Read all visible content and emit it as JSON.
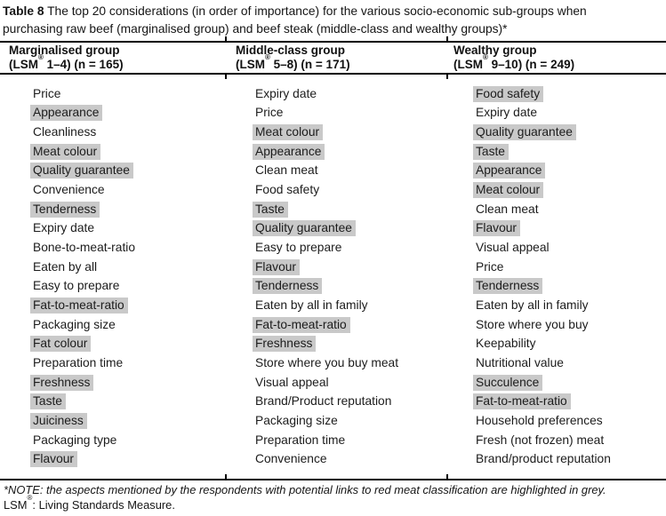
{
  "title": {
    "label": "Table 8",
    "line1_rest": " The top 20 considerations (in order of importance) for the various socio-economic sub-groups when",
    "line2": "purchasing raw beef (marginalised group) and beef steak (middle-class and wealthy groups)*"
  },
  "columns": [
    {
      "header_line1": "Marginalised group",
      "header_line2_pre": "(LSM",
      "header_sup": "®",
      "header_line2_post": " 1–4) (n = 165)",
      "items": [
        {
          "label": "Price",
          "highlighted": false
        },
        {
          "label": "Appearance",
          "highlighted": true
        },
        {
          "label": "Cleanliness",
          "highlighted": false
        },
        {
          "label": "Meat colour",
          "highlighted": true
        },
        {
          "label": "Quality guarantee",
          "highlighted": true
        },
        {
          "label": "Convenience",
          "highlighted": false
        },
        {
          "label": "Tenderness",
          "highlighted": true
        },
        {
          "label": "Expiry date",
          "highlighted": false
        },
        {
          "label": "Bone-to-meat-ratio",
          "highlighted": false
        },
        {
          "label": "Eaten by all",
          "highlighted": false
        },
        {
          "label": "Easy to prepare",
          "highlighted": false
        },
        {
          "label": "Fat-to-meat-ratio",
          "highlighted": true
        },
        {
          "label": "Packaging size",
          "highlighted": false
        },
        {
          "label": "Fat colour",
          "highlighted": true
        },
        {
          "label": "Preparation time",
          "highlighted": false
        },
        {
          "label": "Freshness",
          "highlighted": true
        },
        {
          "label": "Taste",
          "highlighted": true
        },
        {
          "label": "Juiciness",
          "highlighted": true
        },
        {
          "label": "Packaging type",
          "highlighted": false
        },
        {
          "label": "Flavour",
          "highlighted": true
        }
      ]
    },
    {
      "header_line1": "Middle-class group",
      "header_line2_pre": "(LSM",
      "header_sup": "®",
      "header_line2_post": " 5–8) (n = 171)",
      "items": [
        {
          "label": "Expiry date",
          "highlighted": false
        },
        {
          "label": "Price",
          "highlighted": false
        },
        {
          "label": "Meat colour",
          "highlighted": true
        },
        {
          "label": "Appearance",
          "highlighted": true
        },
        {
          "label": "Clean meat",
          "highlighted": false
        },
        {
          "label": "Food safety",
          "highlighted": false
        },
        {
          "label": "Taste",
          "highlighted": true
        },
        {
          "label": "Quality guarantee",
          "highlighted": true
        },
        {
          "label": "Easy to prepare",
          "highlighted": false
        },
        {
          "label": "Flavour",
          "highlighted": true
        },
        {
          "label": "Tenderness",
          "highlighted": true
        },
        {
          "label": "Eaten by all in family",
          "highlighted": false
        },
        {
          "label": "Fat-to-meat-ratio",
          "highlighted": true
        },
        {
          "label": "Freshness",
          "highlighted": true
        },
        {
          "label": "Store where you buy meat",
          "highlighted": false
        },
        {
          "label": "Visual appeal",
          "highlighted": false
        },
        {
          "label": "Brand/Product reputation",
          "highlighted": false
        },
        {
          "label": "Packaging size",
          "highlighted": false
        },
        {
          "label": "Preparation time",
          "highlighted": false
        },
        {
          "label": "Convenience",
          "highlighted": false
        }
      ]
    },
    {
      "header_line1": "Wealthy group",
      "header_line2_pre": "(LSM",
      "header_sup": "®",
      "header_line2_post": " 9–10) (n = 249)",
      "items": [
        {
          "label": "Food safety",
          "highlighted": true
        },
        {
          "label": "Expiry date",
          "highlighted": false
        },
        {
          "label": "Quality guarantee",
          "highlighted": true
        },
        {
          "label": "Taste",
          "highlighted": true
        },
        {
          "label": "Appearance",
          "highlighted": true
        },
        {
          "label": "Meat colour",
          "highlighted": true
        },
        {
          "label": "Clean meat",
          "highlighted": false
        },
        {
          "label": "Flavour",
          "highlighted": true
        },
        {
          "label": "Visual appeal",
          "highlighted": false
        },
        {
          "label": "Price",
          "highlighted": false
        },
        {
          "label": "Tenderness",
          "highlighted": true
        },
        {
          "label": "Eaten by all in family",
          "highlighted": false
        },
        {
          "label": "Store where you buy",
          "highlighted": false
        },
        {
          "label": "Keepability",
          "highlighted": false
        },
        {
          "label": "Nutritional value",
          "highlighted": false
        },
        {
          "label": "Succulence",
          "highlighted": true
        },
        {
          "label": "Fat-to-meat-ratio",
          "highlighted": true
        },
        {
          "label": "Household preferences",
          "highlighted": false
        },
        {
          "label": "Fresh (not frozen) meat",
          "highlighted": false
        },
        {
          "label": "Brand/product reputation",
          "highlighted": false
        }
      ]
    }
  ],
  "footnotes": {
    "note": "*NOTE: the aspects mentioned by the respondents with potential links to red meat classification are highlighted in grey.",
    "lsm_pre": "LSM",
    "lsm_sup": "®",
    "lsm_post": ": Living Standards Measure."
  },
  "colors": {
    "highlight": "#c9c9c9",
    "rule": "#000000",
    "text": "#1a1a1a"
  }
}
